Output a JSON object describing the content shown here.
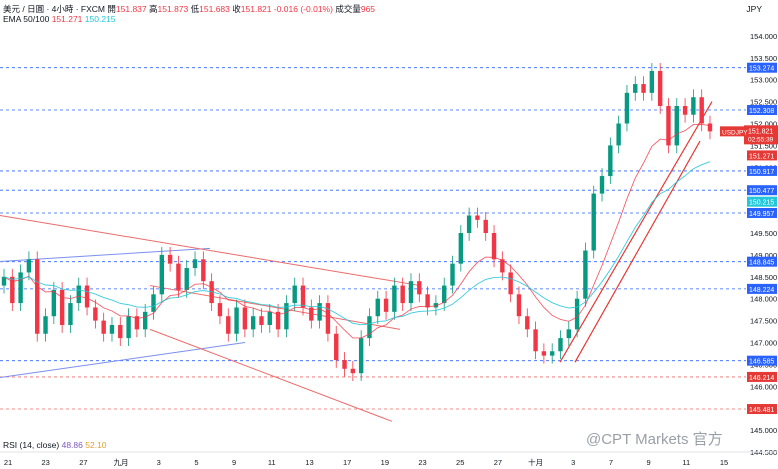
{
  "header": {
    "symbol": "美元 / 日圓 · 4小時 · FXCM",
    "open_label": "開",
    "open": "151.837",
    "high_label": "高",
    "high": "151.873",
    "low_label": "低",
    "low": "151.683",
    "close_label": "收",
    "close": "151.821",
    "change": "-0.016 (-0.01%)",
    "volume_label": "成交量",
    "volume": "965"
  },
  "ema": {
    "label": "EMA 50/100",
    "v50": "151.271",
    "v100": "150.215"
  },
  "rsi": {
    "label": "RSI (14, close)",
    "v1": "48.86",
    "v2": "52.10"
  },
  "watermark": "@CPT Markets 官方",
  "currency": "JPY",
  "colors": {
    "up": "#089981",
    "down": "#f23645",
    "ema50": "#f23645",
    "ema100": "#22c7d9",
    "hline": "#2962ff",
    "trend_blue": "#7b8ff0",
    "trend_red": "#ef6a6a"
  },
  "chart_data": {
    "type": "candlestick",
    "ylim": [
      144.5,
      154.5
    ],
    "y_ticks": [
      "144.500",
      "145.000",
      "145.500",
      "146.000",
      "146.500",
      "147.000",
      "147.500",
      "148.000",
      "148.500",
      "149.000",
      "149.500",
      "150.000",
      "150.500",
      "151.000",
      "151.500",
      "152.000",
      "152.500",
      "153.000",
      "153.500",
      "154.000"
    ],
    "x_ticks": [
      "21",
      "23",
      "27",
      "九月",
      "3",
      "5",
      "9",
      "11",
      "13",
      "17",
      "19",
      "23",
      "25",
      "27",
      "十月",
      "3",
      "7",
      "9",
      "11",
      "15"
    ],
    "horizontal_levels": [
      "153.274",
      "152.308",
      "150.917",
      "150.477",
      "149.957",
      "148.845",
      "148.224",
      "146.585",
      "146.214",
      "145.481"
    ],
    "price_labels": [
      {
        "text": "USDJPY",
        "value": "151.821"
      },
      {
        "text": "02:55:39",
        "value": ""
      },
      {
        "text": "",
        "value": "151.271"
      },
      {
        "text": "",
        "value": "150.215"
      }
    ],
    "close_path": [
      [
        0,
        148.5
      ],
      [
        1,
        147.9
      ],
      [
        2,
        148.6
      ],
      [
        3,
        148.9
      ],
      [
        4,
        147.2
      ],
      [
        5,
        147.6
      ],
      [
        6,
        148.2
      ],
      [
        7,
        147.4
      ],
      [
        8,
        147.9
      ],
      [
        9,
        148.3
      ],
      [
        10,
        147.8
      ],
      [
        11,
        147.5
      ],
      [
        12,
        147.2
      ],
      [
        13,
        147.4
      ],
      [
        14,
        147.1
      ],
      [
        15,
        147.6
      ],
      [
        16,
        147.3
      ],
      [
        17,
        147.7
      ],
      [
        18,
        148.1
      ],
      [
        19,
        149.0
      ],
      [
        20,
        148.8
      ],
      [
        21,
        148.2
      ],
      [
        22,
        148.7
      ],
      [
        23,
        148.9
      ],
      [
        24,
        148.4
      ],
      [
        25,
        147.9
      ],
      [
        26,
        147.6
      ],
      [
        27,
        147.2
      ],
      [
        28,
        147.8
      ],
      [
        29,
        147.3
      ],
      [
        30,
        147.6
      ],
      [
        31,
        147.4
      ],
      [
        32,
        147.7
      ],
      [
        33,
        147.3
      ],
      [
        34,
        147.9
      ],
      [
        35,
        148.3
      ],
      [
        36,
        147.8
      ],
      [
        37,
        147.5
      ],
      [
        38,
        147.9
      ],
      [
        39,
        147.2
      ],
      [
        40,
        146.6
      ],
      [
        41,
        146.4
      ],
      [
        42,
        146.3
      ],
      [
        43,
        147.1
      ],
      [
        44,
        147.6
      ],
      [
        45,
        148.0
      ],
      [
        46,
        147.7
      ],
      [
        47,
        148.3
      ],
      [
        48,
        147.9
      ],
      [
        49,
        148.4
      ],
      [
        50,
        148.1
      ],
      [
        51,
        147.8
      ],
      [
        52,
        147.9
      ],
      [
        53,
        148.3
      ],
      [
        54,
        148.8
      ],
      [
        55,
        149.5
      ],
      [
        56,
        149.9
      ],
      [
        57,
        149.8
      ],
      [
        58,
        149.5
      ],
      [
        59,
        148.9
      ],
      [
        60,
        148.6
      ],
      [
        61,
        148.1
      ],
      [
        62,
        147.6
      ],
      [
        63,
        147.3
      ],
      [
        64,
        146.8
      ],
      [
        65,
        146.7
      ],
      [
        66,
        146.8
      ],
      [
        67,
        147.1
      ],
      [
        68,
        147.3
      ],
      [
        69,
        148.0
      ],
      [
        70,
        149.1
      ],
      [
        71,
        150.4
      ],
      [
        72,
        150.8
      ],
      [
        73,
        151.5
      ],
      [
        74,
        152.0
      ],
      [
        75,
        152.7
      ],
      [
        76,
        152.9
      ],
      [
        77,
        152.7
      ],
      [
        78,
        153.2
      ],
      [
        79,
        152.4
      ],
      [
        80,
        151.5
      ],
      [
        81,
        152.4
      ],
      [
        82,
        152.2
      ],
      [
        83,
        152.6
      ],
      [
        84,
        152.0
      ],
      [
        85,
        151.82
      ]
    ]
  }
}
